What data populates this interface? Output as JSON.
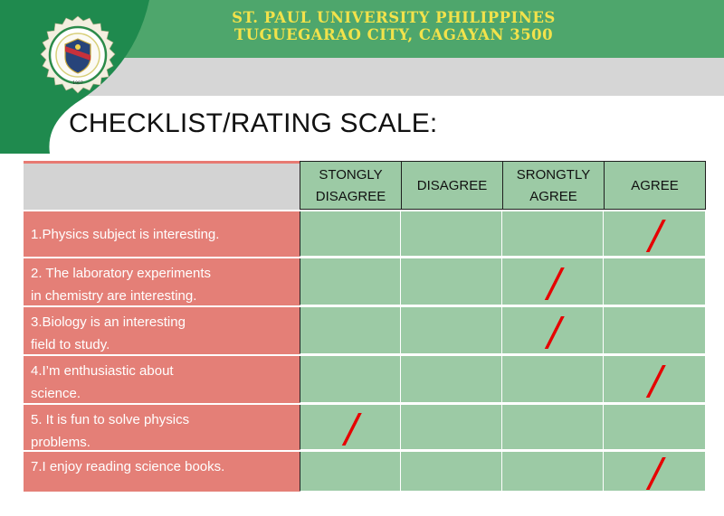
{
  "header": {
    "university": "ST. PAUL UNIVERSITY PHILIPPINES",
    "location": "TUGUEGARAO CITY, CAGAYAN 3500",
    "logo": {
      "ring_text_top": "ST. PAUL UNIVERSITY PHILIPPINES",
      "ring_text_bottom": "TUGUEGARAO CITY",
      "year": "1907"
    }
  },
  "slide_title": "CHECKLIST/RATING SCALE:",
  "table": {
    "columns": [
      {
        "line1": "STONGLY",
        "line2": "DISAGREE"
      },
      {
        "line1": "DISAGREE",
        "line2": ""
      },
      {
        "line1": "SRONGTLY",
        "line2": "AGREE"
      },
      {
        "line1": "AGREE",
        "line2": ""
      }
    ],
    "rows": [
      {
        "line1": "1.Physics subject is interesting.",
        "line2": "",
        "checked_column": 3
      },
      {
        "line1": "2. The laboratory experiments",
        "line2": "in chemistry are interesting.",
        "checked_column": 2
      },
      {
        "line1": "3.Biology is an interesting",
        "line2": "field to study.",
        "checked_column": 2
      },
      {
        "line1": "4.I’m enthusiastic about",
        "line2": "science.",
        "checked_column": 3
      },
      {
        "line1": "5. It is fun to solve physics",
        "line2": "problems.",
        "checked_column": 0
      },
      {
        "line1": "7.I enjoy reading science books.",
        "line2": "",
        "checked_column": 3
      }
    ],
    "check_mark": "/"
  },
  "colors": {
    "header_green": "#4ea66c",
    "title_yellow": "#f2e24b",
    "row_red": "#e47f77",
    "cell_green": "#9ccaa5",
    "mark_red": "#e60000"
  }
}
